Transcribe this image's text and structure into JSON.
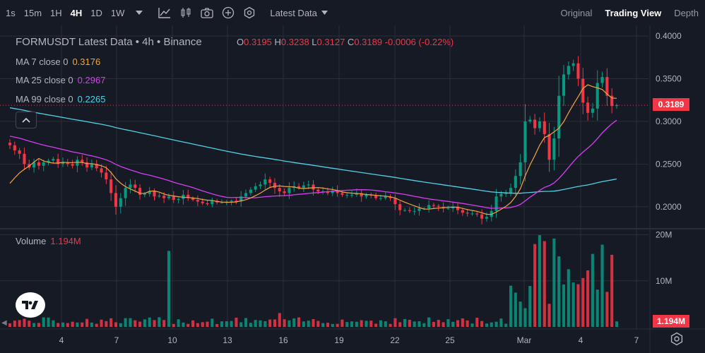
{
  "toolbar": {
    "timeframes": [
      "1s",
      "15m",
      "1H",
      "4H",
      "1D",
      "1W"
    ],
    "active_timeframe": "4H",
    "source_dropdown": "Latest Data",
    "views": [
      "Original",
      "Trading View",
      "Depth"
    ],
    "active_view": "Trading View"
  },
  "legend": {
    "title": "FORMUSDT Latest Data • 4h • Binance",
    "o_label": "O",
    "o": "0.3195",
    "h_label": "H",
    "h": "0.3238",
    "l_label": "L",
    "l": "0.3127",
    "c_label": "C",
    "c": "0.3189",
    "change": "-0.0006 (-0.22%)",
    "ma": [
      {
        "label": "MA 7 close 0",
        "value": "0.3176",
        "color": "#f0a443"
      },
      {
        "label": "MA 25 close 0",
        "value": "0.2967",
        "color": "#d53ff0"
      },
      {
        "label": "MA 99 close 0",
        "value": "0.2265",
        "color": "#4fd1e8"
      }
    ],
    "volume_label": "Volume",
    "volume_value": "1.194M"
  },
  "price_axis": {
    "ticks": [
      "0.4000",
      "0.3500",
      "0.3000",
      "0.2500",
      "0.2000"
    ],
    "last_price": "0.3189"
  },
  "volume_axis": {
    "ticks": [
      "20M",
      "10M"
    ],
    "last_volume": "1.194M"
  },
  "time_axis": {
    "ticks": [
      "4",
      "7",
      "10",
      "13",
      "16",
      "19",
      "22",
      "25",
      "Mar",
      "4",
      "7"
    ]
  },
  "colors": {
    "up": "#089981",
    "down": "#f23645",
    "background": "#161a25",
    "grid": "#2a2e39"
  },
  "chart_data": {
    "type": "candlestick",
    "symbol": "FORMUSDT",
    "interval": "4h",
    "exchange": "Binance",
    "ylim": [
      0.175,
      0.405
    ],
    "volume_ylim": [
      0,
      21000000
    ],
    "series": [
      {
        "name": "price_path",
        "values": [
          0.272,
          0.266,
          0.262,
          0.25,
          0.246,
          0.252,
          0.248,
          0.252,
          0.254,
          0.256,
          0.25,
          0.252,
          0.25,
          0.248,
          0.255,
          0.252,
          0.246,
          0.25,
          0.245,
          0.24,
          0.232,
          0.216,
          0.2,
          0.21,
          0.222,
          0.226,
          0.222,
          0.214,
          0.215,
          0.218,
          0.212,
          0.213,
          0.21,
          0.212,
          0.208,
          0.209,
          0.214,
          0.21,
          0.208,
          0.206,
          0.204,
          0.203,
          0.207,
          0.205,
          0.205,
          0.206,
          0.207,
          0.206,
          0.212,
          0.216,
          0.22,
          0.224,
          0.226,
          0.232,
          0.228,
          0.222,
          0.218,
          0.216,
          0.222,
          0.224,
          0.222,
          0.225,
          0.226,
          0.22,
          0.218,
          0.218,
          0.216,
          0.219,
          0.216,
          0.214,
          0.214,
          0.214,
          0.216,
          0.212,
          0.214,
          0.213,
          0.21,
          0.21,
          0.212,
          0.21,
          0.203,
          0.196,
          0.196,
          0.195,
          0.195,
          0.198,
          0.198,
          0.202,
          0.201,
          0.2,
          0.198,
          0.198,
          0.2,
          0.196,
          0.193,
          0.192,
          0.192,
          0.191,
          0.186,
          0.188,
          0.195,
          0.212,
          0.215,
          0.216,
          0.222,
          0.236,
          0.252,
          0.3,
          0.302,
          0.292,
          0.3,
          0.285,
          0.255,
          0.28,
          0.33,
          0.355,
          0.365,
          0.368,
          0.35,
          0.322,
          0.31,
          0.315,
          0.345,
          0.352,
          0.33,
          0.318,
          0.319
        ]
      },
      {
        "name": "MA 7 close 0",
        "last": 0.3176
      },
      {
        "name": "MA 25 close 0",
        "last": 0.2967
      },
      {
        "name": "MA 99 close 0",
        "last": 0.2265
      }
    ]
  }
}
